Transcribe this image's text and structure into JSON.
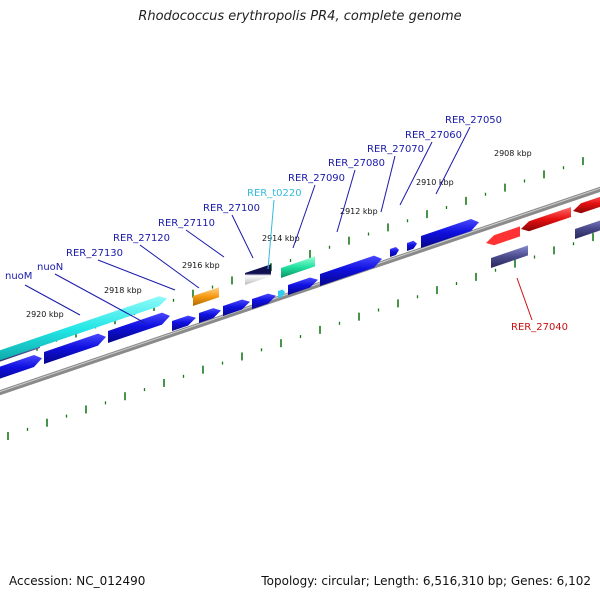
{
  "title": "Rhodococcus erythropolis PR4, complete genome",
  "footer": {
    "accession": "Accession: NC_012490",
    "topology": "Topology: circular; Length: 6,516,310 bp; Genes: 6,102"
  },
  "colors": {
    "gene_blue": "#1010e0",
    "cds_cyan": "#22e6e6",
    "trna": "#33ccee",
    "orange": "#f59a10",
    "teal": "#20e0a0",
    "red": "#e61010",
    "slate": "#4a4a8c",
    "navy": "#101050",
    "tick_green": "#1a7a1a",
    "label_blue": "#1a1aaa",
    "label_red": "#cc1010",
    "label_cyan": "#33bbdd"
  },
  "ticks": [
    {
      "label": "2908 kbp"
    },
    {
      "label": "2910 kbp"
    },
    {
      "label": "2912 kbp"
    },
    {
      "label": "2914 kbp"
    },
    {
      "label": "2916 kbp"
    },
    {
      "label": "2918 kbp"
    },
    {
      "label": "2920 kbp"
    }
  ],
  "gene_labels": [
    {
      "text": "nuoM",
      "color": "label_blue"
    },
    {
      "text": "nuoN",
      "color": "label_blue"
    },
    {
      "text": "RER_27130",
      "color": "label_blue"
    },
    {
      "text": "RER_27120",
      "color": "label_blue"
    },
    {
      "text": "RER_27110",
      "color": "label_blue"
    },
    {
      "text": "RER_27100",
      "color": "label_blue"
    },
    {
      "text": "RER_t0220",
      "color": "label_cyan"
    },
    {
      "text": "RER_27090",
      "color": "label_blue"
    },
    {
      "text": "RER_27080",
      "color": "label_blue"
    },
    {
      "text": "RER_27070",
      "color": "label_blue"
    },
    {
      "text": "RER_27060",
      "color": "label_blue"
    },
    {
      "text": "RER_27050",
      "color": "label_blue"
    },
    {
      "text": "RER_27040",
      "color": "label_red"
    }
  ]
}
